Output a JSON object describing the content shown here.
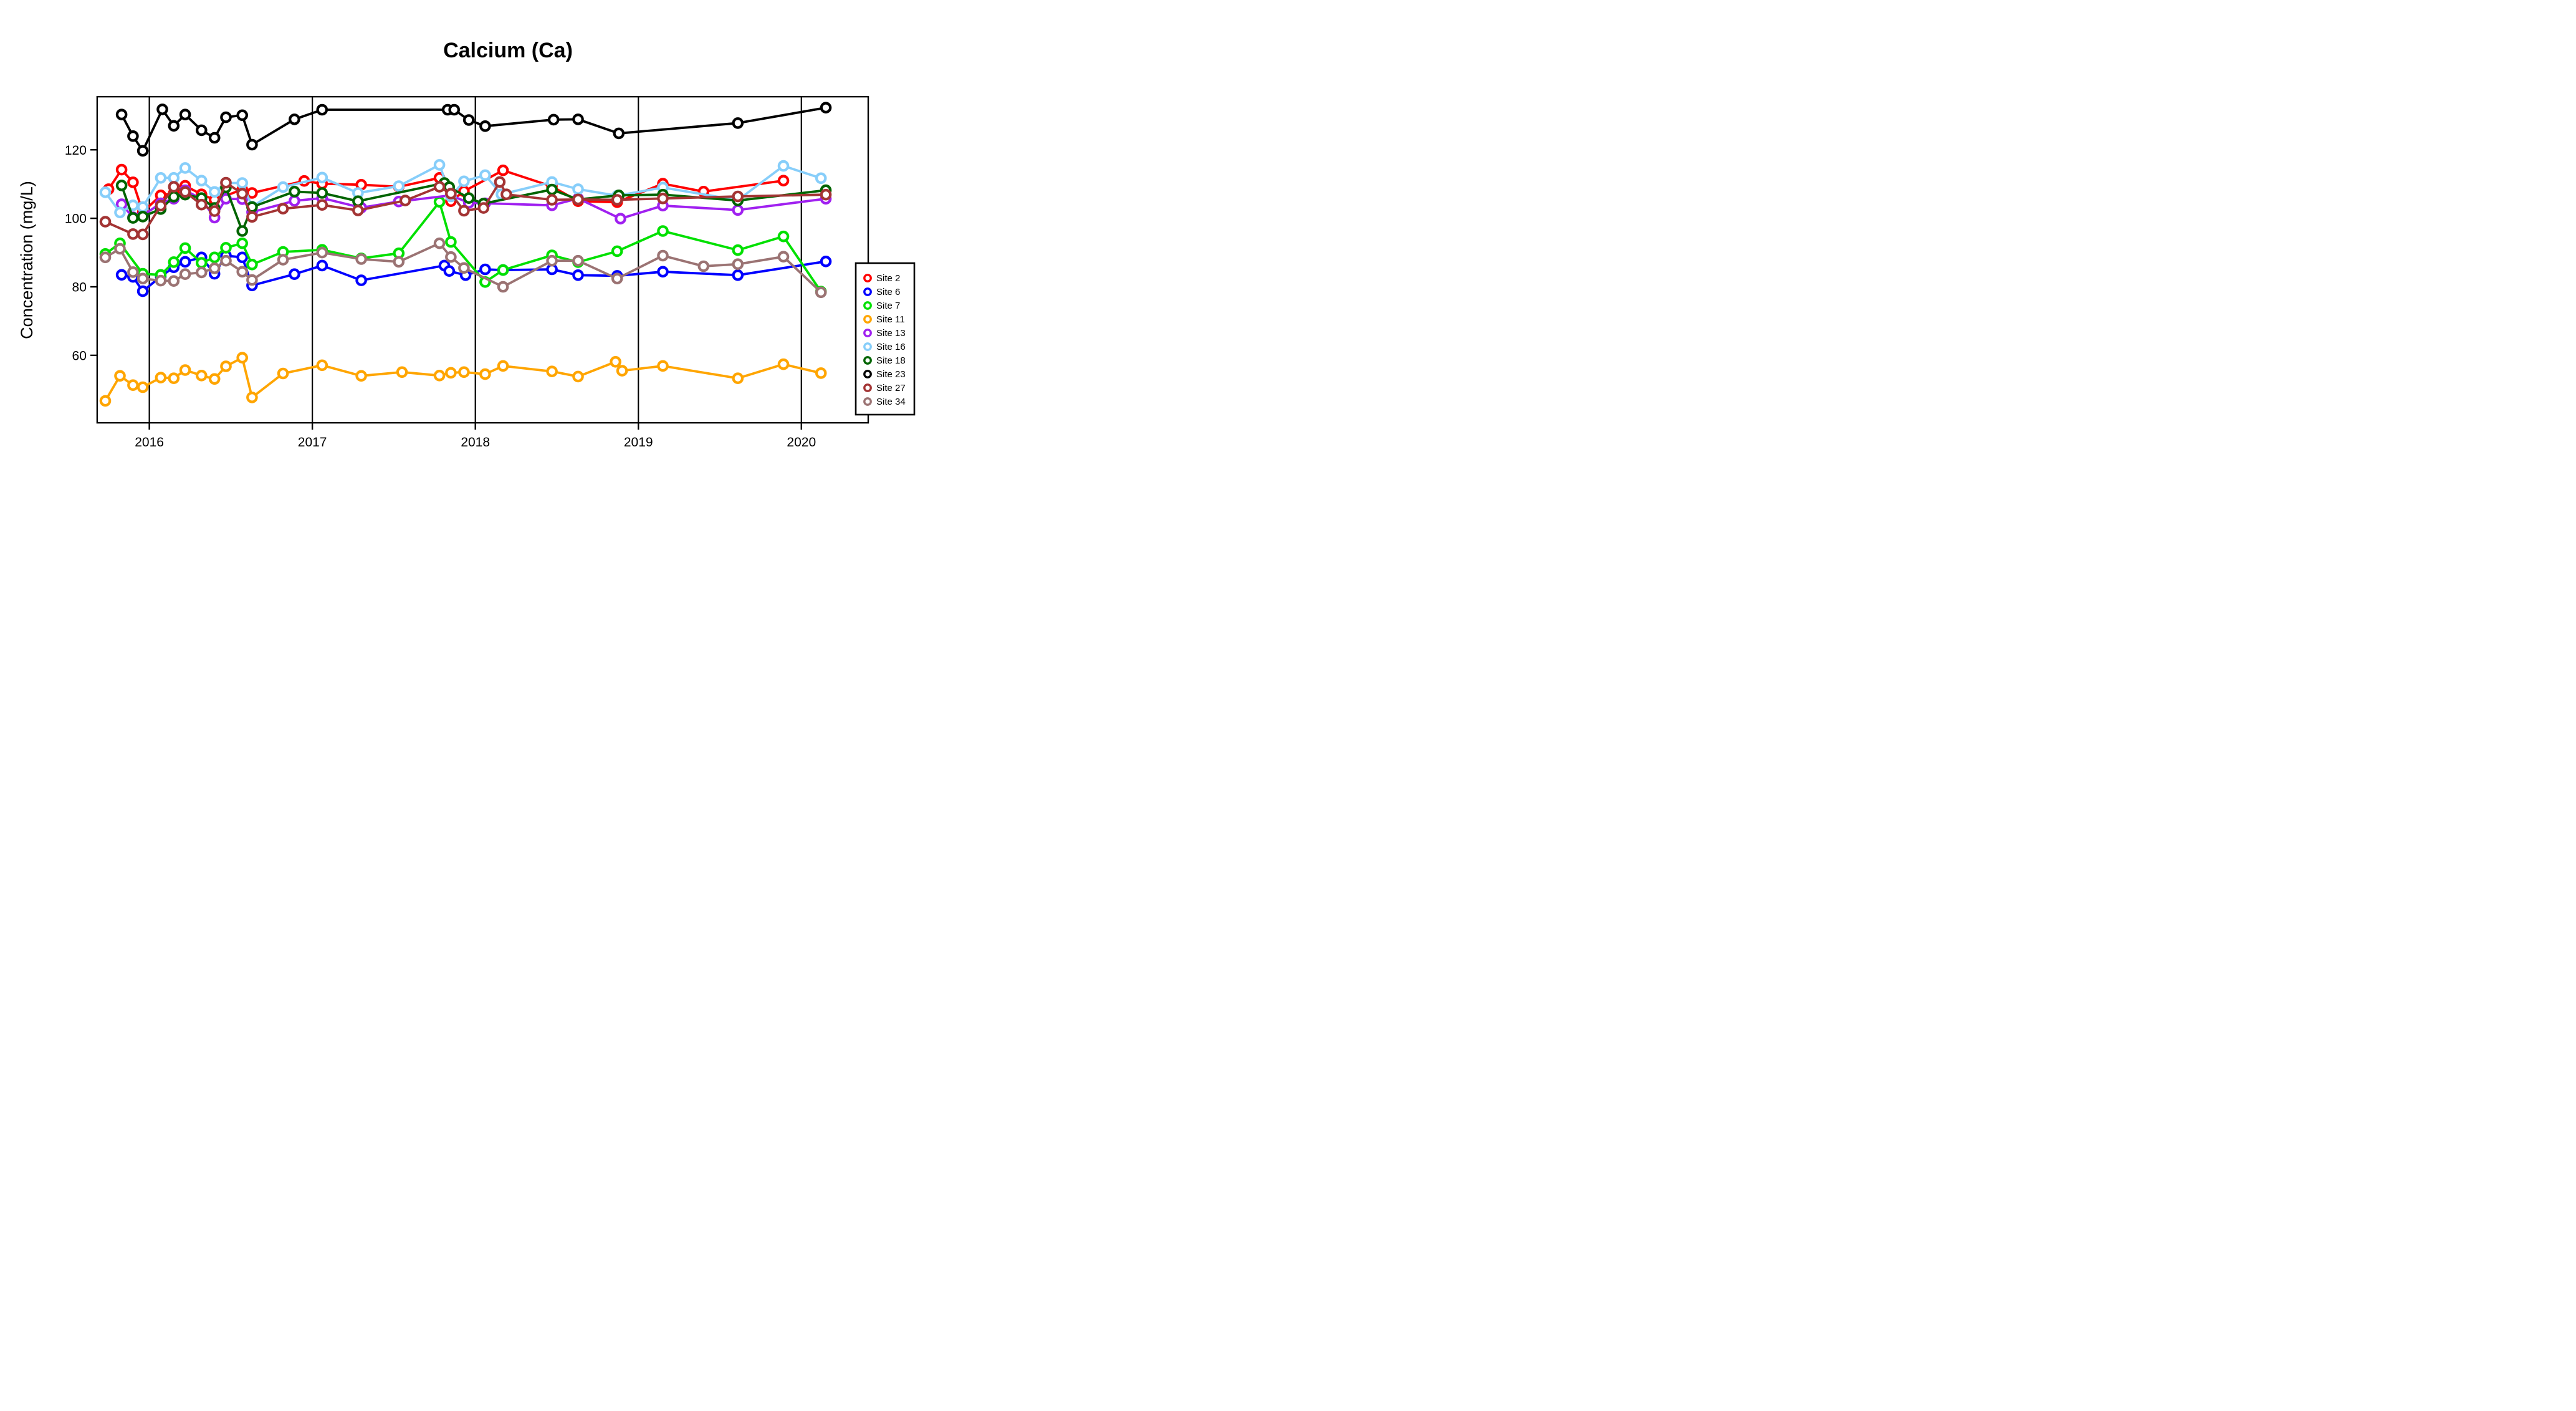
{
  "chart_data": {
    "type": "line",
    "title": "Calcium (Ca)",
    "xlabel": "",
    "ylabel": "Concentration (mg/L)",
    "x_ticks": [
      2016,
      2017,
      2018,
      2019,
      2020
    ],
    "y_ticks": [
      60,
      80,
      100,
      120
    ],
    "x_range": [
      2015.68,
      2020.41
    ],
    "y_range": [
      40.3,
      135.5
    ],
    "grid": "vertical-year-lines",
    "legend_position": "right",
    "marker": "open-circle",
    "series": [
      {
        "name": "Site 2",
        "color": "#FF0000",
        "points": [
          [
            2015.75,
            108.5
          ],
          [
            2015.83,
            114.2
          ],
          [
            2015.9,
            110.5
          ],
          [
            2015.96,
            101.8
          ],
          [
            2016.07,
            106.7
          ],
          [
            2016.15,
            107.3
          ],
          [
            2016.22,
            109.5
          ],
          [
            2016.32,
            107.0
          ],
          [
            2016.4,
            105.4
          ],
          [
            2016.57,
            108.4
          ],
          [
            2016.63,
            107.4
          ],
          [
            2016.95,
            110.9
          ],
          [
            2017.06,
            110.1
          ],
          [
            2017.3,
            109.8
          ],
          [
            2017.53,
            109.2
          ],
          [
            2017.78,
            111.8
          ],
          [
            2017.85,
            105.0
          ],
          [
            2017.93,
            107.9
          ],
          [
            2018.17,
            114.0
          ],
          [
            2018.47,
            109.3
          ],
          [
            2018.63,
            105.0
          ],
          [
            2018.87,
            104.7
          ],
          [
            2019.15,
            110.1
          ],
          [
            2019.4,
            107.8
          ],
          [
            2019.89,
            111.0
          ]
        ]
      },
      {
        "name": "Site 6",
        "color": "#0000FF",
        "points": [
          [
            2015.83,
            83.5
          ],
          [
            2015.9,
            82.9
          ],
          [
            2015.96,
            78.7
          ],
          [
            2016.07,
            83.0
          ],
          [
            2016.15,
            85.7
          ],
          [
            2016.22,
            87.3
          ],
          [
            2016.32,
            88.6
          ],
          [
            2016.4,
            83.8
          ],
          [
            2016.47,
            89.1
          ],
          [
            2016.57,
            88.6
          ],
          [
            2016.63,
            80.4
          ],
          [
            2016.89,
            83.7
          ],
          [
            2017.06,
            86.2
          ],
          [
            2017.3,
            81.9
          ],
          [
            2017.81,
            86.2
          ],
          [
            2017.84,
            84.6
          ],
          [
            2017.94,
            83.4
          ],
          [
            2018.06,
            85.1
          ],
          [
            2018.17,
            84.9
          ],
          [
            2018.47,
            85.1
          ],
          [
            2018.63,
            83.4
          ],
          [
            2018.87,
            83.2
          ],
          [
            2019.15,
            84.4
          ],
          [
            2019.61,
            83.4
          ],
          [
            2020.15,
            87.4
          ]
        ]
      },
      {
        "name": "Site 7",
        "color": "#00E000",
        "points": [
          [
            2015.73,
            89.6
          ],
          [
            2015.82,
            92.7
          ],
          [
            2015.96,
            83.8
          ],
          [
            2016.07,
            83.5
          ],
          [
            2016.15,
            87.2
          ],
          [
            2016.22,
            91.3
          ],
          [
            2016.32,
            87.0
          ],
          [
            2016.4,
            88.6
          ],
          [
            2016.47,
            91.4
          ],
          [
            2016.57,
            92.7
          ],
          [
            2016.63,
            86.5
          ],
          [
            2016.82,
            90.2
          ],
          [
            2017.06,
            90.8
          ],
          [
            2017.3,
            88.3
          ],
          [
            2017.53,
            89.8
          ],
          [
            2017.78,
            104.8
          ],
          [
            2017.85,
            93.1
          ],
          [
            2018.06,
            81.4
          ],
          [
            2018.17,
            84.9
          ],
          [
            2018.47,
            89.2
          ],
          [
            2018.63,
            87.2
          ],
          [
            2018.87,
            90.4
          ],
          [
            2019.15,
            96.3
          ],
          [
            2019.61,
            90.7
          ],
          [
            2019.89,
            94.7
          ],
          [
            2020.12,
            78.6
          ]
        ]
      },
      {
        "name": "Site 11",
        "color": "#FFA500",
        "points": [
          [
            2015.73,
            46.7
          ],
          [
            2015.82,
            54.0
          ],
          [
            2015.9,
            51.3
          ],
          [
            2015.96,
            50.7
          ],
          [
            2016.07,
            53.5
          ],
          [
            2016.15,
            53.3
          ],
          [
            2016.22,
            55.7
          ],
          [
            2016.32,
            54.1
          ],
          [
            2016.4,
            53.1
          ],
          [
            2016.47,
            56.8
          ],
          [
            2016.57,
            59.3
          ],
          [
            2016.63,
            47.7
          ],
          [
            2016.82,
            54.7
          ],
          [
            2017.06,
            57.1
          ],
          [
            2017.3,
            54.0
          ],
          [
            2017.55,
            55.1
          ],
          [
            2017.78,
            54.1
          ],
          [
            2017.85,
            54.9
          ],
          [
            2017.93,
            55.1
          ],
          [
            2018.06,
            54.5
          ],
          [
            2018.17,
            56.9
          ],
          [
            2018.47,
            55.3
          ],
          [
            2018.63,
            53.8
          ],
          [
            2018.86,
            58.1
          ],
          [
            2018.9,
            55.5
          ],
          [
            2019.15,
            56.9
          ],
          [
            2019.61,
            53.3
          ],
          [
            2019.89,
            57.4
          ],
          [
            2020.12,
            54.8
          ]
        ]
      },
      {
        "name": "Site 13",
        "color": "#A020F0",
        "points": [
          [
            2015.83,
            104.1
          ],
          [
            2015.9,
            100.3
          ],
          [
            2015.96,
            100.8
          ],
          [
            2016.07,
            104.4
          ],
          [
            2016.15,
            105.7
          ],
          [
            2016.22,
            108.2
          ],
          [
            2016.32,
            105.6
          ],
          [
            2016.4,
            100.2
          ],
          [
            2016.47,
            105.7
          ],
          [
            2016.57,
            105.6
          ],
          [
            2016.63,
            101.8
          ],
          [
            2016.89,
            105.1
          ],
          [
            2017.06,
            105.9
          ],
          [
            2017.3,
            103.1
          ],
          [
            2017.53,
            104.9
          ],
          [
            2017.85,
            106.7
          ],
          [
            2017.96,
            104.5
          ],
          [
            2018.06,
            104.4
          ],
          [
            2018.47,
            103.8
          ],
          [
            2018.63,
            105.8
          ],
          [
            2018.89,
            99.9
          ],
          [
            2019.15,
            103.7
          ],
          [
            2019.61,
            102.4
          ],
          [
            2020.15,
            105.7
          ]
        ]
      },
      {
        "name": "Site 16",
        "color": "#87CEFA",
        "points": [
          [
            2015.73,
            107.6
          ],
          [
            2015.82,
            101.7
          ],
          [
            2015.9,
            103.8
          ],
          [
            2015.96,
            103.3
          ],
          [
            2016.07,
            111.8
          ],
          [
            2016.15,
            111.8
          ],
          [
            2016.22,
            114.7
          ],
          [
            2016.32,
            111.0
          ],
          [
            2016.4,
            107.7
          ],
          [
            2016.47,
            110.3
          ],
          [
            2016.57,
            110.3
          ],
          [
            2016.63,
            103.4
          ],
          [
            2016.82,
            109.1
          ],
          [
            2017.06,
            111.9
          ],
          [
            2017.28,
            107.4
          ],
          [
            2017.53,
            109.4
          ],
          [
            2017.78,
            115.6
          ],
          [
            2017.85,
            106.4
          ],
          [
            2017.93,
            110.8
          ],
          [
            2018.06,
            112.6
          ],
          [
            2018.16,
            107.0
          ],
          [
            2018.47,
            110.6
          ],
          [
            2018.63,
            108.5
          ],
          [
            2018.87,
            106.6
          ],
          [
            2019.15,
            109.0
          ],
          [
            2019.61,
            105.3
          ],
          [
            2019.89,
            115.3
          ],
          [
            2020.12,
            111.7
          ]
        ]
      },
      {
        "name": "Site 18",
        "color": "#006400",
        "points": [
          [
            2015.83,
            109.6
          ],
          [
            2015.9,
            100.1
          ],
          [
            2015.96,
            100.5
          ],
          [
            2016.07,
            102.7
          ],
          [
            2016.15,
            106.3
          ],
          [
            2016.22,
            106.9
          ],
          [
            2016.32,
            105.9
          ],
          [
            2016.4,
            103.0
          ],
          [
            2016.47,
            109.0
          ],
          [
            2016.57,
            96.3
          ],
          [
            2016.63,
            103.3
          ],
          [
            2016.89,
            107.8
          ],
          [
            2017.06,
            107.4
          ],
          [
            2017.28,
            105.0
          ],
          [
            2017.81,
            110.3
          ],
          [
            2017.84,
            109.1
          ],
          [
            2017.96,
            105.9
          ],
          [
            2018.05,
            104.3
          ],
          [
            2018.47,
            108.4
          ],
          [
            2018.63,
            105.5
          ],
          [
            2018.88,
            106.7
          ],
          [
            2019.15,
            106.9
          ],
          [
            2019.61,
            105.2
          ],
          [
            2020.15,
            108.2
          ]
        ]
      },
      {
        "name": "Site 23",
        "color": "#000000",
        "points": [
          [
            2015.83,
            130.3
          ],
          [
            2015.9,
            124.0
          ],
          [
            2015.96,
            119.7
          ],
          [
            2016.08,
            131.8
          ],
          [
            2016.15,
            127.0
          ],
          [
            2016.22,
            130.3
          ],
          [
            2016.32,
            125.7
          ],
          [
            2016.4,
            123.5
          ],
          [
            2016.47,
            129.5
          ],
          [
            2016.57,
            130.1
          ],
          [
            2016.63,
            121.5
          ],
          [
            2016.89,
            128.9
          ],
          [
            2017.06,
            131.7
          ],
          [
            2017.83,
            131.7
          ],
          [
            2017.87,
            131.7
          ],
          [
            2017.96,
            128.7
          ],
          [
            2018.06,
            126.9
          ],
          [
            2018.48,
            128.8
          ],
          [
            2018.63,
            128.9
          ],
          [
            2018.88,
            124.8
          ],
          [
            2019.61,
            127.8
          ],
          [
            2020.15,
            132.3
          ]
        ]
      },
      {
        "name": "Site 27",
        "color": "#A33434",
        "points": [
          [
            2015.73,
            99.0
          ],
          [
            2015.9,
            95.4
          ],
          [
            2015.96,
            95.3
          ],
          [
            2016.07,
            103.7
          ],
          [
            2016.15,
            109.2
          ],
          [
            2016.22,
            107.7
          ],
          [
            2016.32,
            104.0
          ],
          [
            2016.4,
            102.1
          ],
          [
            2016.47,
            110.4
          ],
          [
            2016.57,
            107.2
          ],
          [
            2016.63,
            100.4
          ],
          [
            2016.82,
            102.8
          ],
          [
            2017.06,
            103.9
          ],
          [
            2017.28,
            102.3
          ],
          [
            2017.57,
            105.2
          ],
          [
            2017.78,
            109.2
          ],
          [
            2017.85,
            107.2
          ],
          [
            2017.93,
            102.2
          ],
          [
            2018.05,
            103.0
          ],
          [
            2018.15,
            110.6
          ],
          [
            2018.19,
            107.0
          ],
          [
            2018.47,
            105.4
          ],
          [
            2018.63,
            105.5
          ],
          [
            2018.87,
            105.4
          ],
          [
            2019.15,
            105.8
          ],
          [
            2019.61,
            106.4
          ],
          [
            2020.15,
            106.9
          ]
        ]
      },
      {
        "name": "Site 34",
        "color": "#9B7373",
        "points": [
          [
            2015.73,
            88.6
          ],
          [
            2015.82,
            91.1
          ],
          [
            2015.9,
            84.3
          ],
          [
            2015.96,
            82.4
          ],
          [
            2016.07,
            81.8
          ],
          [
            2016.15,
            81.7
          ],
          [
            2016.22,
            83.7
          ],
          [
            2016.32,
            84.2
          ],
          [
            2016.4,
            85.4
          ],
          [
            2016.47,
            87.6
          ],
          [
            2016.57,
            84.4
          ],
          [
            2016.63,
            82.0
          ],
          [
            2016.82,
            87.9
          ],
          [
            2017.06,
            90.0
          ],
          [
            2017.3,
            88.1
          ],
          [
            2017.53,
            87.3
          ],
          [
            2017.78,
            92.7
          ],
          [
            2017.85,
            88.7
          ],
          [
            2017.93,
            85.5
          ],
          [
            2018.17,
            80.0
          ],
          [
            2018.47,
            87.6
          ],
          [
            2018.63,
            87.6
          ],
          [
            2018.87,
            82.4
          ],
          [
            2019.15,
            89.1
          ],
          [
            2019.4,
            86.0
          ],
          [
            2019.61,
            86.6
          ],
          [
            2019.89,
            88.8
          ],
          [
            2020.12,
            78.4
          ]
        ]
      }
    ]
  }
}
